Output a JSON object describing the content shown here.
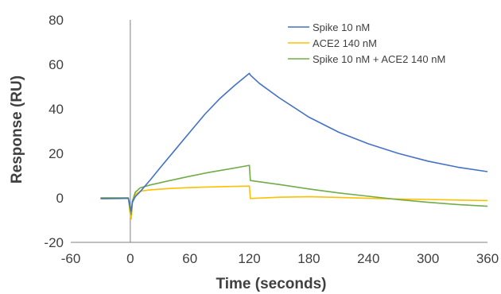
{
  "chart_data": {
    "type": "line",
    "title": "",
    "xlabel": "Time (seconds)",
    "ylabel": "Response (RU)",
    "xlim": [
      -60,
      360
    ],
    "ylim": [
      -20,
      80
    ],
    "xticks": [
      -60,
      0,
      60,
      120,
      180,
      240,
      300,
      360
    ],
    "yticks": [
      -20,
      0,
      20,
      40,
      60,
      80
    ],
    "grid": false,
    "legend_position": "top-right",
    "series": [
      {
        "name": "Spike 10 nM",
        "color": "#4472C4",
        "x": [
          -30,
          -10,
          -2,
          0,
          1,
          2,
          5,
          10,
          20,
          30,
          45,
          60,
          75,
          90,
          105,
          120,
          121,
          130,
          150,
          180,
          210,
          240,
          270,
          300,
          330,
          360
        ],
        "y": [
          -0.4,
          -0.3,
          -0.2,
          -4.0,
          -6.0,
          -2.0,
          0.5,
          2.8,
          8.0,
          13.5,
          21.5,
          29.5,
          37.5,
          44.5,
          50.5,
          56.0,
          55.2,
          51.5,
          45.0,
          36.3,
          29.5,
          24.3,
          20.0,
          16.5,
          13.8,
          11.8
        ]
      },
      {
        "name": "ACE2 140 nM",
        "color": "#FFC000",
        "x": [
          -30,
          -10,
          -2,
          0,
          1,
          2,
          5,
          10,
          20,
          40,
          60,
          80,
          100,
          120,
          121,
          150,
          180,
          210,
          240,
          270,
          300,
          330,
          360
        ],
        "y": [
          0,
          0,
          0,
          -8.0,
          -9.5,
          -2.5,
          1.5,
          3.0,
          3.6,
          4.2,
          4.6,
          4.9,
          5.1,
          5.3,
          -0.3,
          0.3,
          0.5,
          0.2,
          -0.2,
          -0.5,
          -0.7,
          -1.0,
          -1.2
        ]
      },
      {
        "name": "Spike 10 nM + ACE2 140 nM",
        "color": "#70AD47",
        "x": [
          -30,
          -10,
          -2,
          0,
          1,
          2,
          5,
          10,
          20,
          40,
          60,
          80,
          100,
          120,
          121,
          150,
          180,
          210,
          240,
          270,
          300,
          330,
          360
        ],
        "y": [
          0,
          0,
          0,
          -6.0,
          -7.5,
          -1.5,
          2.5,
          4.5,
          5.8,
          7.8,
          9.7,
          11.5,
          13.0,
          14.6,
          7.8,
          6.0,
          4.0,
          2.2,
          0.7,
          -0.8,
          -2.0,
          -3.0,
          -3.8
        ]
      }
    ]
  }
}
